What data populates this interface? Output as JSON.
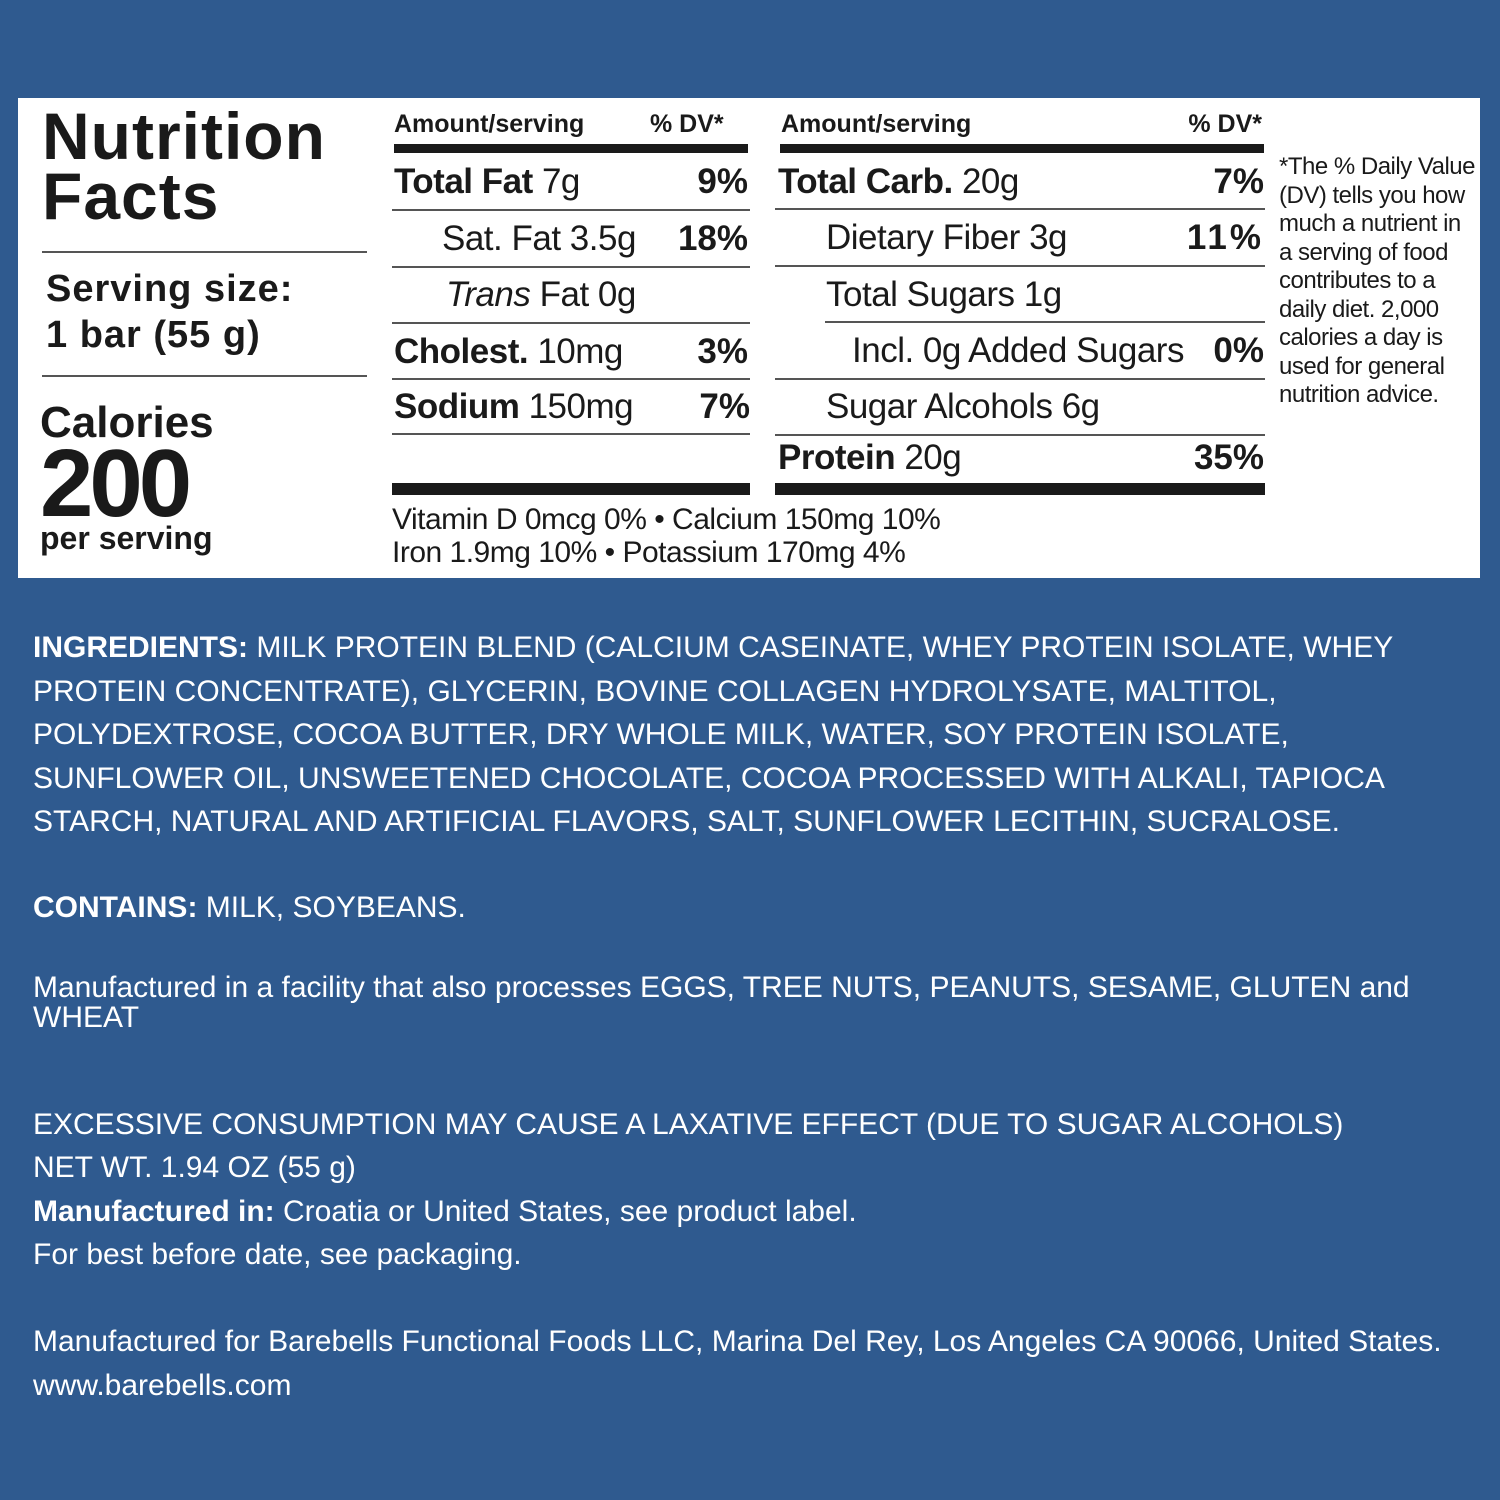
{
  "background_color": "#2f5a8f",
  "label": {
    "title_line1": "Nutrition",
    "title_line2": "Facts",
    "serving_label": "Serving size:",
    "serving_value": "1 bar (55 g)",
    "calories_label": "Calories",
    "calories_value": "200",
    "calories_unit": "per serving",
    "left_table": {
      "header_amount": "Amount/serving",
      "header_dv": "% DV*",
      "rows": [
        {
          "name": "Total Fat",
          "amount": "7g",
          "dv": "9%"
        },
        {
          "name": "Sat. Fat",
          "amount": "3.5g",
          "dv": "18%"
        },
        {
          "name_italic": "Trans",
          "name": "Fat",
          "amount": "0g",
          "dv": ""
        },
        {
          "name": "Cholest.",
          "amount": "10mg",
          "dv": "3%"
        },
        {
          "name": "Sodium",
          "amount": "150mg",
          "dv": "7%"
        }
      ]
    },
    "right_table": {
      "header_amount": "Amount/serving",
      "header_dv": "% DV*",
      "rows": [
        {
          "name": "Total Carb.",
          "amount": "20g",
          "dv": "7%"
        },
        {
          "name": "Dietary Fiber",
          "amount": "3g",
          "dv": "11%"
        },
        {
          "name": "Total Sugars",
          "amount": "1g",
          "dv": ""
        },
        {
          "name": "Incl. 0g Added Sugars",
          "amount": "",
          "dv": "0%"
        },
        {
          "name": "Sugar Alcohols",
          "amount": "6g",
          "dv": ""
        },
        {
          "name": "Protein",
          "amount": "20g",
          "dv": "35%"
        }
      ]
    },
    "vitamins_line1": "Vitamin D 0mcg 0%  •  Calcium 150mg 10%",
    "vitamins_line2": "Iron 1.9mg 10%  •  Potassium 170mg 4%",
    "footnote": "*The % Daily Value (DV) tells you how much a nutrient in a serving of food contributes to a daily diet. 2,000 calories a day is used for general nutrition advice."
  },
  "text": {
    "ingredients_label": "INGREDIENTS:",
    "ingredients": "MILK PROTEIN BLEND (CALCIUM CASEINATE, WHEY PROTEIN ISOLATE, WHEY PROTEIN CONCENTRATE), GLYCERIN, BOVINE COLLAGEN HYDROLYSATE, MALTITOL, POLYDEXTROSE, COCOA BUTTER, DRY WHOLE MILK, WATER, SOY PROTEIN ISOLATE, SUNFLOWER OIL, UNSWEETENED CHOCOLATE, COCOA PROCESSED WITH ALKALI, TAPIOCA STARCH, NATURAL AND ARTIFICIAL FLAVORS, SALT, SUNFLOWER LECITHIN, SUCRALOSE.",
    "contains_label": "CONTAINS:",
    "contains": "MILK, SOYBEANS.",
    "facility": "Manufactured in a facility that also processes EGGS, TREE NUTS, PEANUTS, SESAME, GLUTEN and WHEAT",
    "warning": "EXCESSIVE CONSUMPTION MAY CAUSE A LAXATIVE EFFECT (DUE TO SUGAR ALCOHOLS)",
    "net_wt": "NET WT. 1.94 OZ (55 g)",
    "manufactured_in_label": "Manufactured in:",
    "manufactured_in": "Croatia or United States, see product label.",
    "best_before": "For best before date, see packaging.",
    "manufactured_for": "Manufactured for Barebells Functional Foods LLC, Marina Del Rey, Los Angeles CA 90066, United States. www.barebells.com"
  }
}
